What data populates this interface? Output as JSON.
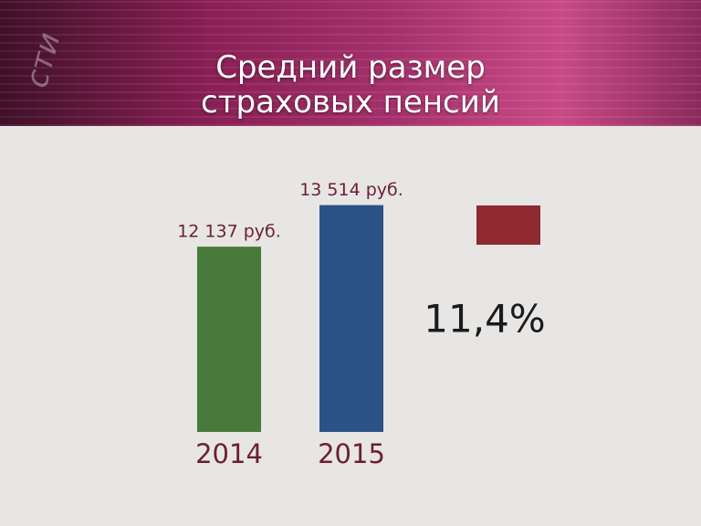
{
  "chart_data": {
    "type": "bar",
    "title": "Средний размер\nстраховых пенсий",
    "categories": [
      "2014",
      "2015"
    ],
    "values": [
      12137,
      13514
    ],
    "value_labels": [
      "12 137 руб.",
      "13 514 руб."
    ],
    "colors": [
      "#477a3b",
      "#2b5287"
    ],
    "ylim": [
      6000,
      14500
    ],
    "annotation": "11,4%",
    "annotation_color": "#8e2a30"
  },
  "logo": "сти"
}
